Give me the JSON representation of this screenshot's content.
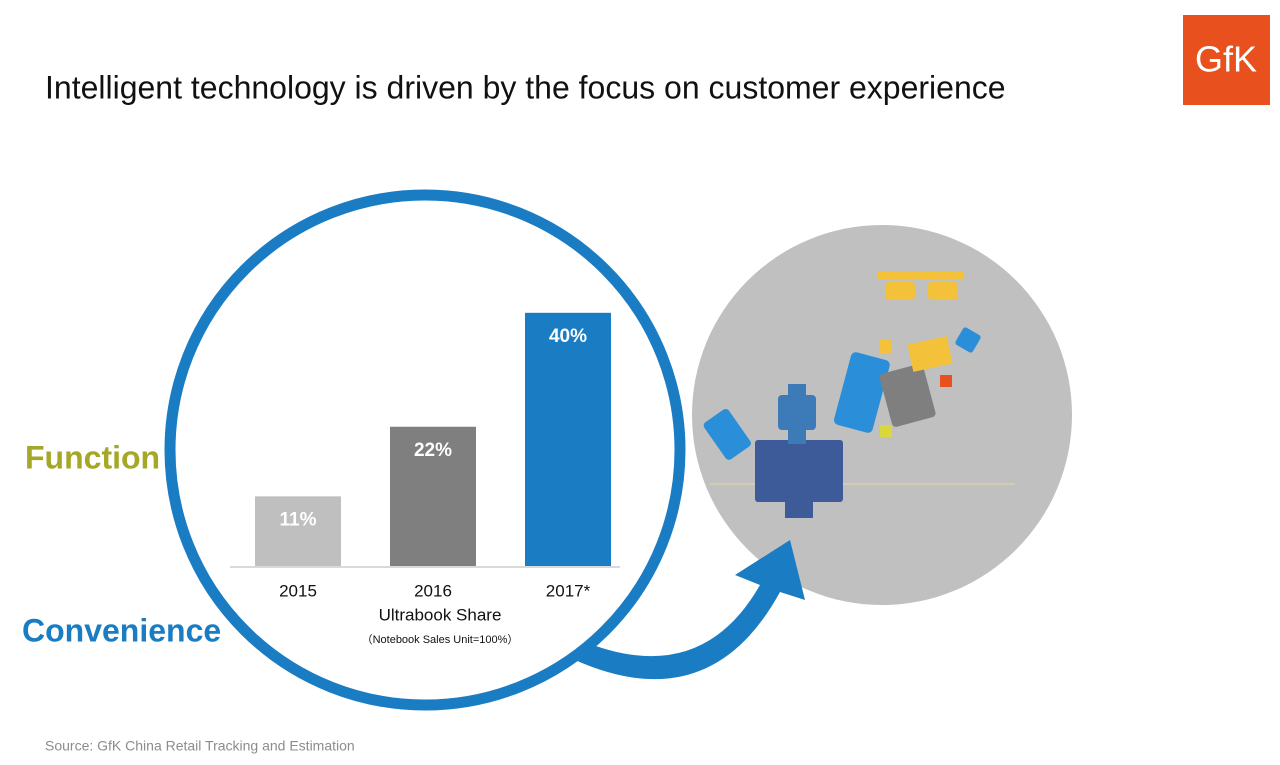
{
  "title": "Intelligent technology is driven by the focus on customer experience",
  "logo": "GfK",
  "labels": [
    "Function",
    "Convenience"
  ],
  "source": "Source: GfK China Retail Tracking and Estimation",
  "chart_data": {
    "type": "bar",
    "categories": [
      "2015",
      "2016",
      "2017*"
    ],
    "values": [
      11,
      22,
      40
    ],
    "value_labels": [
      "11%",
      "22%",
      "40%"
    ],
    "colors": [
      "#bfbfbf",
      "#7f7f7f",
      "#1a7dc4"
    ],
    "x_label": "Ultrabook Share",
    "subtitle": "（Notebook Sales Unit=100%）"
  }
}
